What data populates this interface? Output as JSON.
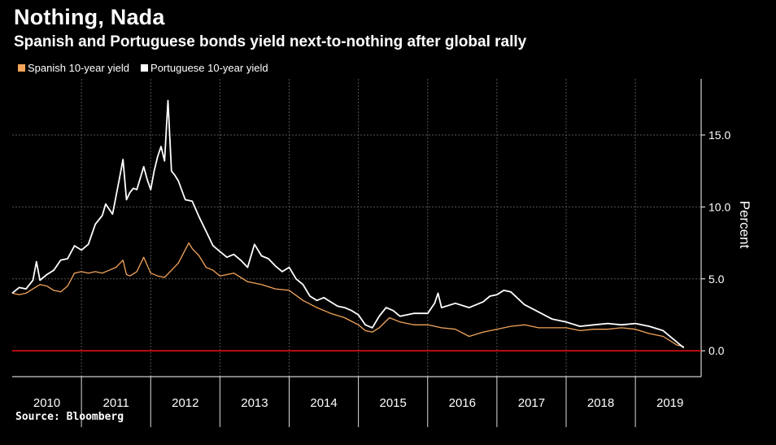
{
  "header": {
    "title": "Nothing, Nada",
    "subtitle": "Spanish and Portuguese bonds yield next-to-nothing after global rally"
  },
  "source": "Source: Bloomberg",
  "colors": {
    "spain": "#f4a55a",
    "portugal": "#ffffff",
    "zero_line": "#e01010",
    "grid": "#555555"
  },
  "chart_data": {
    "type": "line",
    "ylabel": "Percent",
    "ylim": [
      -1.8,
      18.9
    ],
    "yticks": [
      0,
      5,
      10,
      15
    ],
    "ytick_labels": [
      "0.0",
      "5.0",
      "10.0",
      "15.0"
    ],
    "xlim": [
      2010.0,
      2019.95
    ],
    "xtick_labels": [
      "2010",
      "2011",
      "2012",
      "2013",
      "2014",
      "2015",
      "2016",
      "2017",
      "2018",
      "2019"
    ],
    "legend_position": "top-left",
    "grid": true,
    "reference_line": 0,
    "series": [
      {
        "name": "Spanish 10-year yield",
        "color": "#f4a55a",
        "x": [
          2010.0,
          2010.1,
          2010.2,
          2010.3,
          2010.4,
          2010.5,
          2010.6,
          2010.7,
          2010.8,
          2010.9,
          2011.0,
          2011.1,
          2011.2,
          2011.3,
          2011.4,
          2011.5,
          2011.6,
          2011.65,
          2011.7,
          2011.8,
          2011.9,
          2012.0,
          2012.1,
          2012.2,
          2012.3,
          2012.4,
          2012.55,
          2012.6,
          2012.7,
          2012.8,
          2012.9,
          2013.0,
          2013.2,
          2013.4,
          2013.6,
          2013.8,
          2014.0,
          2014.2,
          2014.4,
          2014.6,
          2014.8,
          2015.0,
          2015.1,
          2015.2,
          2015.3,
          2015.45,
          2015.6,
          2015.8,
          2016.0,
          2016.2,
          2016.4,
          2016.6,
          2016.8,
          2017.0,
          2017.2,
          2017.4,
          2017.6,
          2017.8,
          2018.0,
          2018.2,
          2018.4,
          2018.6,
          2018.8,
          2019.0,
          2019.2,
          2019.4,
          2019.6,
          2019.7
        ],
        "values": [
          4.0,
          3.9,
          4.0,
          4.3,
          4.6,
          4.5,
          4.2,
          4.1,
          4.5,
          5.4,
          5.5,
          5.4,
          5.5,
          5.4,
          5.6,
          5.8,
          6.3,
          5.3,
          5.2,
          5.5,
          6.5,
          5.4,
          5.2,
          5.1,
          5.6,
          6.1,
          7.5,
          7.1,
          6.6,
          5.8,
          5.6,
          5.2,
          5.4,
          4.8,
          4.6,
          4.3,
          4.2,
          3.5,
          3.0,
          2.6,
          2.3,
          1.8,
          1.4,
          1.3,
          1.6,
          2.3,
          2.0,
          1.8,
          1.8,
          1.6,
          1.5,
          1.0,
          1.3,
          1.5,
          1.7,
          1.8,
          1.6,
          1.6,
          1.6,
          1.4,
          1.5,
          1.5,
          1.6,
          1.5,
          1.2,
          1.0,
          0.4,
          0.3
        ]
      },
      {
        "name": "Portuguese 10-year yield",
        "color": "#ffffff",
        "x": [
          2010.0,
          2010.1,
          2010.2,
          2010.3,
          2010.35,
          2010.4,
          2010.5,
          2010.6,
          2010.7,
          2010.8,
          2010.9,
          2011.0,
          2011.1,
          2011.2,
          2011.3,
          2011.35,
          2011.45,
          2011.55,
          2011.6,
          2011.65,
          2011.7,
          2011.75,
          2011.8,
          2011.9,
          2011.95,
          2012.0,
          2012.05,
          2012.1,
          2012.15,
          2012.2,
          2012.25,
          2012.3,
          2012.35,
          2012.4,
          2012.5,
          2012.6,
          2012.7,
          2012.8,
          2012.9,
          2013.0,
          2013.1,
          2013.2,
          2013.3,
          2013.4,
          2013.5,
          2013.6,
          2013.7,
          2013.8,
          2013.9,
          2014.0,
          2014.1,
          2014.2,
          2014.3,
          2014.4,
          2014.5,
          2014.6,
          2014.7,
          2014.8,
          2014.9,
          2015.0,
          2015.1,
          2015.2,
          2015.3,
          2015.4,
          2015.5,
          2015.6,
          2015.8,
          2016.0,
          2016.1,
          2016.15,
          2016.2,
          2016.4,
          2016.6,
          2016.8,
          2016.9,
          2017.0,
          2017.1,
          2017.2,
          2017.4,
          2017.6,
          2017.8,
          2018.0,
          2018.2,
          2018.4,
          2018.6,
          2018.8,
          2019.0,
          2019.2,
          2019.4,
          2019.6,
          2019.7
        ],
        "values": [
          4.0,
          4.4,
          4.3,
          4.9,
          6.2,
          4.9,
          5.3,
          5.6,
          6.3,
          6.4,
          7.3,
          7.0,
          7.4,
          8.8,
          9.4,
          10.2,
          9.5,
          12.0,
          13.3,
          10.5,
          11.0,
          11.3,
          11.2,
          12.8,
          11.9,
          11.2,
          12.5,
          13.5,
          14.2,
          13.2,
          17.4,
          12.5,
          12.2,
          11.8,
          10.5,
          10.4,
          9.3,
          8.3,
          7.3,
          6.9,
          6.5,
          6.7,
          6.3,
          5.8,
          7.4,
          6.6,
          6.4,
          5.9,
          5.5,
          5.8,
          5.0,
          4.6,
          3.8,
          3.5,
          3.7,
          3.4,
          3.1,
          3.0,
          2.8,
          2.5,
          1.8,
          1.6,
          2.4,
          3.0,
          2.8,
          2.4,
          2.6,
          2.6,
          3.3,
          4.0,
          3.0,
          3.3,
          3.0,
          3.4,
          3.8,
          3.9,
          4.2,
          4.1,
          3.2,
          2.7,
          2.2,
          2.0,
          1.7,
          1.8,
          1.9,
          1.8,
          1.9,
          1.7,
          1.4,
          0.6,
          0.2
        ]
      }
    ]
  }
}
